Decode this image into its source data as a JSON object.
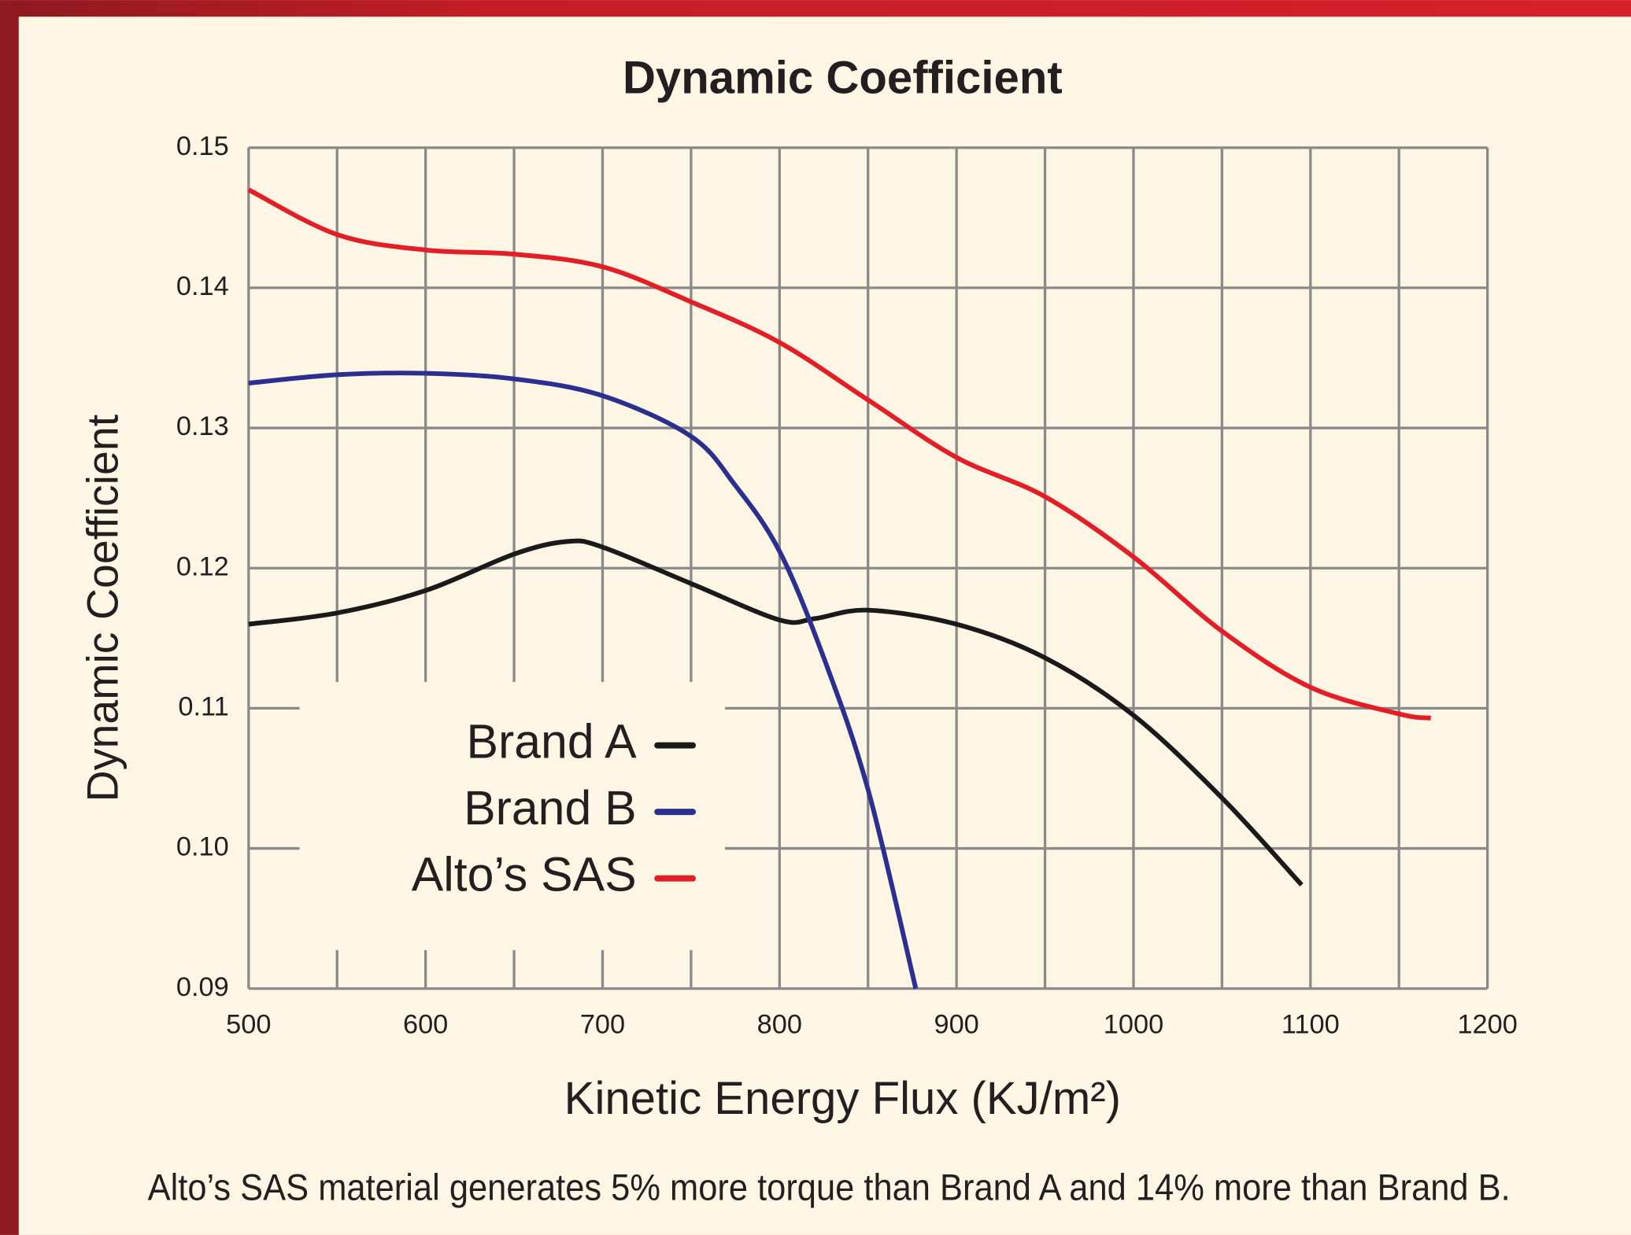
{
  "chart_data": {
    "type": "line",
    "title": "Dynamic Coefficient",
    "x_label": "Kinetic Energy Flux (KJ/m²)",
    "y_label": "Dynamic Coefficient",
    "caption": "Alto’s SAS material generates 5% more torque than Brand A and 14% more than Brand B.",
    "xlim": [
      500,
      1200
    ],
    "xticks": [
      500,
      600,
      700,
      800,
      900,
      1000,
      1100,
      1200
    ],
    "x_minor_grid": [
      550,
      650,
      750,
      850,
      950,
      1050,
      1150
    ],
    "ylim": [
      0.09,
      0.15
    ],
    "yticks": [
      0.09,
      {
        "value": 0.1,
        "label": "0.10"
      },
      0.11,
      0.12,
      0.13,
      0.14,
      0.15
    ],
    "grid": true,
    "legend_position": "center-left",
    "series": [
      {
        "name": "Brand A",
        "color": "#1a1a1a",
        "x": [
          500,
          550,
          600,
          650,
          680,
          700,
          750,
          800,
          820,
          850,
          900,
          950,
          1000,
          1050,
          1095
        ],
        "values": [
          0.116,
          0.1168,
          0.1184,
          0.121,
          0.1219,
          0.1215,
          0.1189,
          0.1163,
          0.1164,
          0.117,
          0.116,
          0.1136,
          0.1095,
          0.1036,
          0.0974
        ]
      },
      {
        "name": "Brand B",
        "color": "#2b2f8f",
        "x": [
          500,
          550,
          600,
          650,
          700,
          750,
          775,
          800,
          825,
          850,
          877
        ],
        "values": [
          0.1332,
          0.1338,
          0.1339,
          0.1335,
          0.1323,
          0.1294,
          0.1259,
          0.1212,
          0.1136,
          0.1042,
          0.09
        ]
      },
      {
        "name": "Alto’s SAS",
        "color": "#e31e26",
        "x": [
          500,
          550,
          600,
          650,
          700,
          750,
          800,
          850,
          900,
          950,
          1000,
          1050,
          1100,
          1150,
          1168
        ],
        "values": [
          0.147,
          0.1438,
          0.1427,
          0.1424,
          0.1415,
          0.139,
          0.1361,
          0.132,
          0.1279,
          0.1251,
          0.1208,
          0.1155,
          0.1115,
          0.1096,
          0.1093
        ]
      }
    ]
  }
}
